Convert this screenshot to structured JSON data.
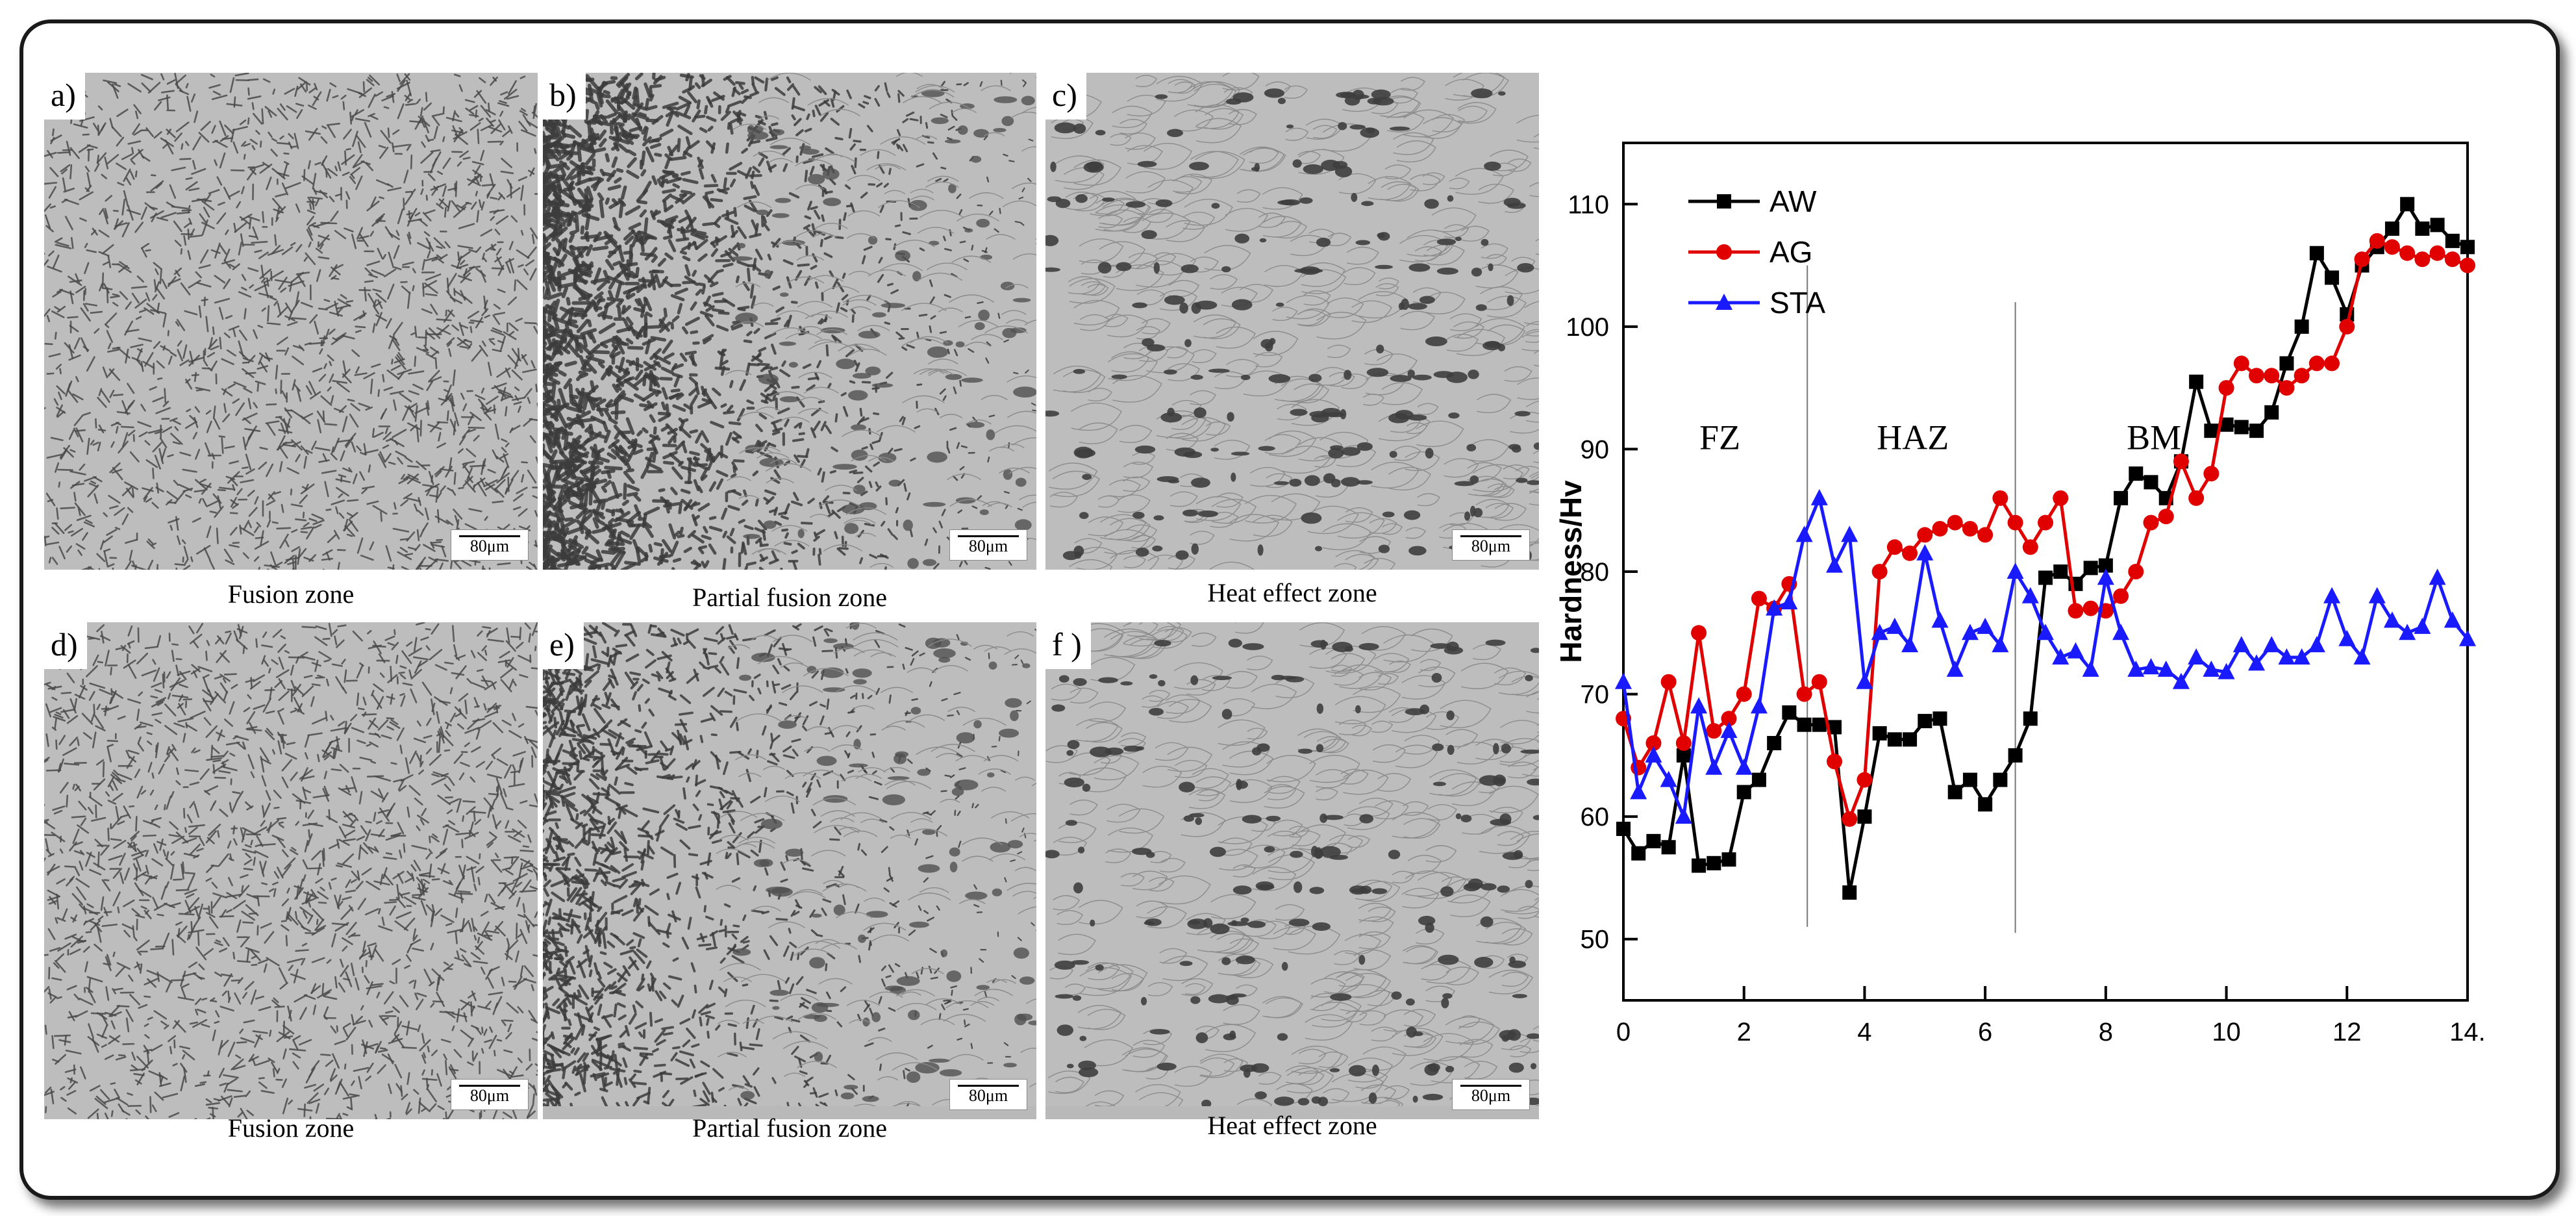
{
  "panels": [
    {
      "label": "a)",
      "caption": "Fusion zone",
      "scale": "80μm",
      "texture": "fine"
    },
    {
      "label": "b)",
      "caption": "Partial fusion zone",
      "scale": "80μm",
      "texture": "gradient"
    },
    {
      "label": "c)",
      "caption": "Heat effect zone",
      "scale": "80μm",
      "texture": "coarse"
    },
    {
      "label": "d)",
      "caption": "Fusion zone",
      "scale": "80μm",
      "texture": "fine"
    },
    {
      "label": "e)",
      "caption": "Partial fusion zone",
      "scale": "80μm",
      "texture": "gradient-light"
    },
    {
      "label": "f )",
      "caption": "Heat effect zone",
      "scale": "80μm",
      "texture": "coarse"
    }
  ],
  "chart_data": {
    "type": "line",
    "title": "",
    "xlabel": "",
    "ylabel": "Hardness/Hv",
    "xlim": [
      0,
      14
    ],
    "ylim": [
      45,
      115
    ],
    "xticks": [
      0,
      2,
      4,
      6,
      8,
      10,
      12,
      14
    ],
    "yticks": [
      50,
      60,
      70,
      80,
      90,
      100,
      110
    ],
    "xtick_labels": [
      "0",
      "2",
      "4",
      "6",
      "8",
      "10",
      "12",
      "14."
    ],
    "grid": false,
    "legend_position": "top-left",
    "zones": [
      {
        "label": "FZ",
        "x": 1.6,
        "y": 90
      },
      {
        "label": "HAZ",
        "x": 4.8,
        "y": 90
      },
      {
        "label": "BM",
        "x": 8.8,
        "y": 90
      }
    ],
    "zone_boundaries": [
      {
        "x": 3.05,
        "y_from": 51,
        "y_to": 105
      },
      {
        "x": 6.5,
        "y_from": 50.5,
        "y_to": 102
      }
    ],
    "series": [
      {
        "name": "AW",
        "color": "#000000",
        "marker": "square",
        "x": [
          0,
          0.25,
          0.5,
          0.75,
          1.0,
          1.25,
          1.5,
          1.75,
          2.0,
          2.25,
          2.5,
          2.75,
          3.0,
          3.25,
          3.5,
          3.75,
          4.0,
          4.25,
          4.5,
          4.75,
          5.0,
          5.25,
          5.5,
          5.75,
          6.0,
          6.25,
          6.5,
          6.75,
          7.0,
          7.25,
          7.5,
          7.75,
          8.0,
          8.25,
          8.5,
          8.75,
          9.0,
          9.25,
          9.5,
          9.75,
          10.0,
          10.25,
          10.5,
          10.75,
          11.0,
          11.25,
          11.5,
          11.75,
          12.0,
          12.25,
          12.5,
          12.75,
          13.0,
          13.25,
          13.5,
          13.75,
          14.0
        ],
        "values": [
          59,
          57,
          58,
          57.5,
          65,
          56,
          56.2,
          56.5,
          62,
          63,
          66,
          68.5,
          67.5,
          67.5,
          67.3,
          53.8,
          60,
          66.8,
          66.3,
          66.3,
          67.8,
          68,
          62,
          63,
          61,
          63,
          65,
          68,
          79.5,
          80,
          79,
          80.3,
          80.5,
          86,
          88,
          87.3,
          86,
          89,
          95.5,
          91.5,
          92,
          91.8,
          91.5,
          93,
          97,
          100,
          106,
          104,
          101,
          105,
          106.5,
          108,
          110,
          108,
          108.3,
          107,
          106.5
        ]
      },
      {
        "name": "AG",
        "color": "#e00000",
        "marker": "circle",
        "x": [
          0,
          0.25,
          0.5,
          0.75,
          1.0,
          1.25,
          1.5,
          1.75,
          2.0,
          2.25,
          2.5,
          2.75,
          3.0,
          3.25,
          3.5,
          3.75,
          4.0,
          4.25,
          4.5,
          4.75,
          5.0,
          5.25,
          5.5,
          5.75,
          6.0,
          6.25,
          6.5,
          6.75,
          7.0,
          7.25,
          7.5,
          7.75,
          8.0,
          8.25,
          8.5,
          8.75,
          9.0,
          9.25,
          9.5,
          9.75,
          10.0,
          10.25,
          10.5,
          10.75,
          11.0,
          11.25,
          11.5,
          11.75,
          12.0,
          12.25,
          12.5,
          12.75,
          13.0,
          13.25,
          13.5,
          13.75,
          14.0
        ],
        "values": [
          68,
          64,
          66,
          71,
          66,
          75,
          67,
          68,
          70,
          77.8,
          77,
          79,
          70,
          71,
          64.5,
          59.8,
          63,
          80,
          82,
          81.5,
          83,
          83.5,
          84,
          83.5,
          83,
          86,
          84,
          82,
          84,
          86,
          76.8,
          77,
          76.8,
          78,
          80,
          84,
          84.5,
          89,
          86,
          88,
          95,
          97,
          96,
          96,
          95,
          96,
          97,
          97,
          100,
          105.5,
          107,
          106.5,
          106,
          105.5,
          106,
          105.5,
          105
        ]
      },
      {
        "name": "STA",
        "color": "#1a1aff",
        "marker": "triangle",
        "x": [
          0,
          0.25,
          0.5,
          0.75,
          1.0,
          1.25,
          1.5,
          1.75,
          2.0,
          2.25,
          2.5,
          2.75,
          3.0,
          3.25,
          3.5,
          3.75,
          4.0,
          4.25,
          4.5,
          4.75,
          5.0,
          5.25,
          5.5,
          5.75,
          6.0,
          6.25,
          6.5,
          6.75,
          7.0,
          7.25,
          7.5,
          7.75,
          8.0,
          8.25,
          8.5,
          8.75,
          9.0,
          9.25,
          9.5,
          9.75,
          10.0,
          10.25,
          10.5,
          10.75,
          11.0,
          11.25,
          11.5,
          11.75,
          12.0,
          12.25,
          12.5,
          12.75,
          13.0,
          13.25,
          13.5,
          13.75,
          14.0
        ],
        "values": [
          71,
          62,
          65,
          63,
          60,
          69,
          64,
          67,
          64,
          69,
          77,
          77.5,
          83,
          86,
          80.5,
          83,
          71,
          75,
          75.5,
          74,
          81.5,
          76,
          72,
          75,
          75.5,
          74,
          80,
          78,
          75,
          73,
          73.5,
          72,
          79.5,
          75,
          72,
          72.2,
          72,
          71,
          73,
          72,
          71.8,
          74,
          72.5,
          74,
          73,
          73,
          74,
          78,
          74.5,
          73,
          78,
          76,
          75,
          75.5,
          79.5,
          76,
          74.5
        ]
      }
    ]
  }
}
